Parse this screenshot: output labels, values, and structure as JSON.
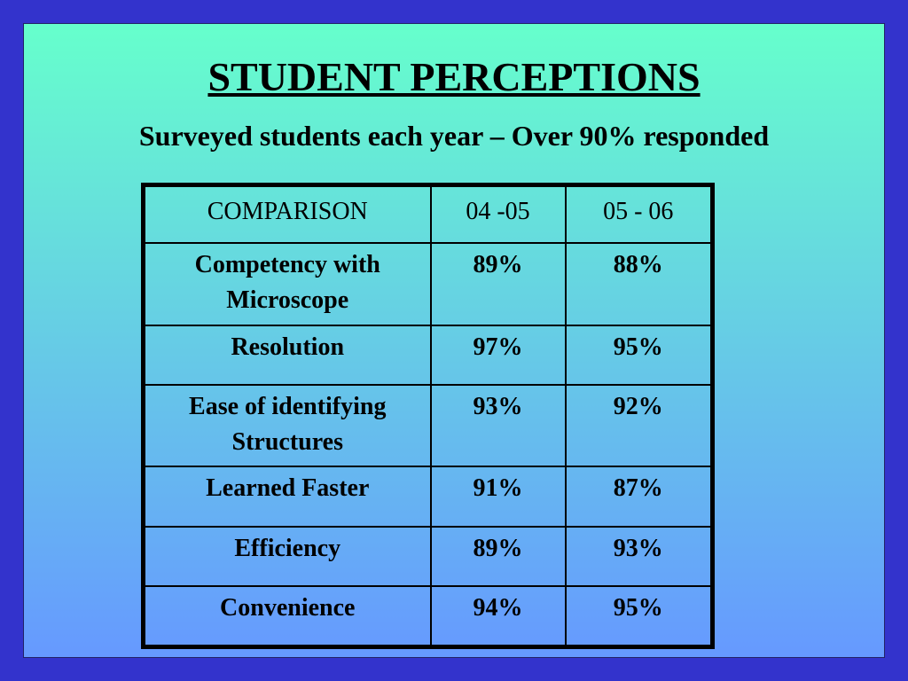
{
  "header": {
    "title": "STUDENT PERCEPTIONS",
    "subtitle": "Surveyed students each year – Over 90% responded"
  },
  "table": {
    "columns": [
      "COMPARISON",
      "04 -05",
      "05 - 06"
    ],
    "rows": [
      [
        "Competency with Microscope",
        "89%",
        "88%"
      ],
      [
        "Resolution",
        "97%",
        "95%"
      ],
      [
        "Ease of identifying Structures",
        "93%",
        "92%"
      ],
      [
        "Learned Faster",
        "91%",
        "87%"
      ],
      [
        "Efficiency",
        "89%",
        "93%"
      ],
      [
        "Convenience",
        "94%",
        "95%"
      ]
    ]
  }
}
